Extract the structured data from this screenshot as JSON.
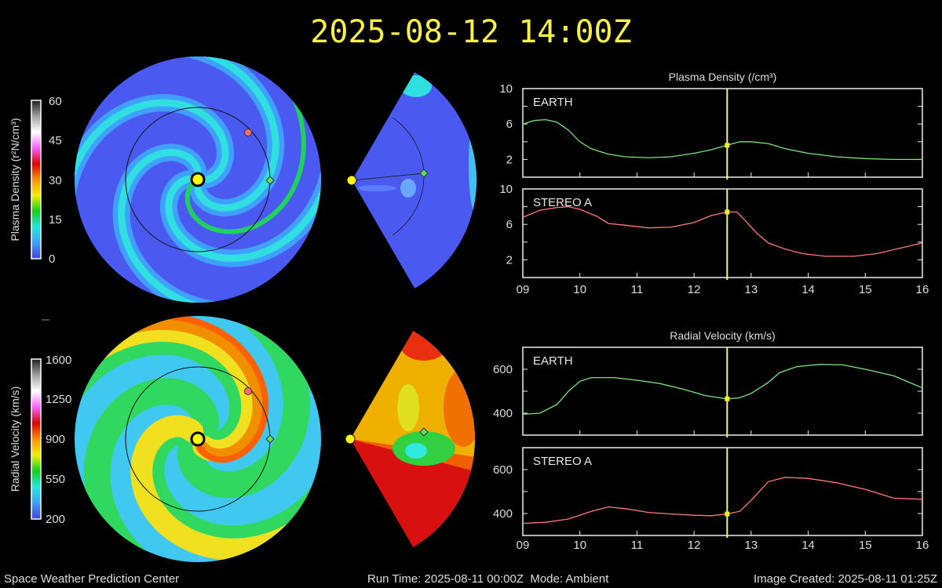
{
  "header": {
    "title": "2025-08-12 14:00Z"
  },
  "footer": {
    "center_name": "Space Weather Prediction Center",
    "run_time": "Run Time: 2025-08-11 00:00Z  Mode: Ambient",
    "image_created": "Image Created: 2025-08-11 01:25Z"
  },
  "colorbars": {
    "density": {
      "label": "Plasma Density (r²N/cm³)",
      "ticks": [
        "0",
        "15",
        "30",
        "45",
        "60"
      ]
    },
    "velocity": {
      "label": "Radial Velocity (km/s)",
      "ticks": [
        "200",
        "550",
        "900",
        "1250",
        "1600"
      ]
    },
    "colors": [
      "#4040e0",
      "#3fa0ff",
      "#20e8e0",
      "#10d020",
      "#f0f000",
      "#ff9000",
      "#e00000",
      "#ff60ff",
      "#ffffff",
      "#a0a0a0",
      "#202020"
    ]
  },
  "markers": {
    "sun": "#ffff00",
    "earth": "#5ee05e",
    "stereo_a": "#ff6a6a"
  },
  "chart_data": [
    {
      "type": "line",
      "title": "Plasma Density (/cm³)",
      "xlim": [
        9,
        16
      ],
      "xticks": [
        "09",
        "10",
        "11",
        "12",
        "13",
        "14",
        "15",
        "16"
      ],
      "current_time_x": 12.58,
      "current_time_color": "#f4f47a",
      "panels": [
        {
          "label": "EARTH",
          "color": "#7ee07e",
          "ylim": [
            0,
            10
          ],
          "yticks": [
            2,
            6,
            10
          ],
          "minor_yticks": [
            4,
            8
          ],
          "x": [
            9.0,
            9.2,
            9.4,
            9.6,
            9.8,
            10.0,
            10.2,
            10.5,
            10.8,
            11.2,
            11.6,
            12.0,
            12.3,
            12.58,
            12.8,
            13.0,
            13.3,
            13.6,
            14.0,
            14.5,
            15.0,
            15.5,
            16.0
          ],
          "y": [
            6.0,
            6.4,
            6.5,
            6.2,
            5.3,
            4.0,
            3.2,
            2.6,
            2.3,
            2.2,
            2.3,
            2.7,
            3.1,
            3.6,
            4.0,
            4.0,
            3.8,
            3.2,
            2.7,
            2.3,
            2.1,
            2.0,
            2.0
          ]
        },
        {
          "label": "STEREO A",
          "color": "#ff7a7a",
          "ylim": [
            0,
            10
          ],
          "yticks": [
            2,
            6,
            10
          ],
          "minor_yticks": [
            4,
            8
          ],
          "x": [
            9.0,
            9.3,
            9.6,
            9.8,
            10.0,
            10.3,
            10.5,
            10.8,
            11.2,
            11.6,
            12.0,
            12.3,
            12.58,
            12.75,
            12.9,
            13.1,
            13.3,
            13.6,
            13.9,
            14.3,
            14.8,
            15.2,
            15.6,
            16.0
          ],
          "y": [
            6.8,
            7.6,
            7.9,
            8.0,
            7.7,
            6.9,
            6.1,
            5.9,
            5.6,
            5.7,
            6.2,
            7.0,
            7.4,
            7.4,
            6.4,
            5.0,
            3.9,
            3.2,
            2.7,
            2.4,
            2.4,
            2.7,
            3.3,
            3.9
          ]
        }
      ]
    },
    {
      "type": "line",
      "title": "Radial Velocity (km/s)",
      "xlim": [
        9,
        16
      ],
      "xticks": [
        "09",
        "10",
        "11",
        "12",
        "13",
        "14",
        "15",
        "16"
      ],
      "current_time_x": 12.58,
      "current_time_color": "#f4f47a",
      "panels": [
        {
          "label": "EARTH",
          "color": "#7ee07e",
          "ylim": [
            300,
            700
          ],
          "yticks": [
            400,
            600
          ],
          "minor_yticks": [
            500
          ],
          "x": [
            9.0,
            9.3,
            9.6,
            9.8,
            10.0,
            10.2,
            10.6,
            11.0,
            11.4,
            11.8,
            12.2,
            12.58,
            12.8,
            13.0,
            13.3,
            13.5,
            13.8,
            14.2,
            14.6,
            15.0,
            15.5,
            16.0
          ],
          "y": [
            395,
            400,
            440,
            500,
            545,
            562,
            562,
            550,
            535,
            510,
            480,
            465,
            470,
            490,
            540,
            585,
            612,
            622,
            620,
            600,
            570,
            515
          ]
        },
        {
          "label": "STEREO A",
          "color": "#ff7a7a",
          "ylim": [
            300,
            700
          ],
          "yticks": [
            400,
            600
          ],
          "minor_yticks": [
            500
          ],
          "x": [
            9.0,
            9.4,
            9.8,
            10.2,
            10.5,
            10.8,
            11.2,
            11.6,
            12.0,
            12.3,
            12.58,
            12.8,
            13.0,
            13.3,
            13.6,
            14.0,
            14.5,
            15.0,
            15.5,
            16.0
          ],
          "y": [
            355,
            360,
            375,
            410,
            430,
            422,
            405,
            398,
            392,
            390,
            398,
            410,
            460,
            545,
            565,
            560,
            540,
            510,
            470,
            465
          ]
        }
      ]
    }
  ]
}
